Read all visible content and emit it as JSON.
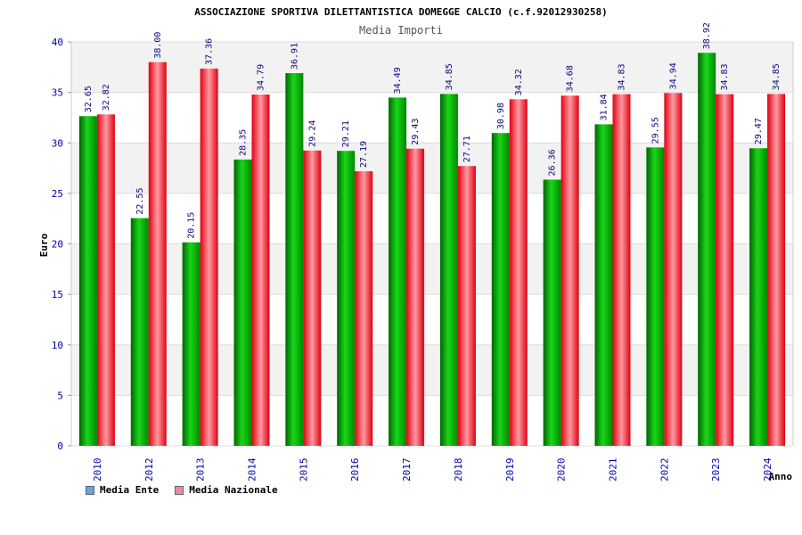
{
  "chart_data": {
    "type": "bar",
    "title": "ASSOCIAZIONE SPORTIVA DILETTANTISTICA DOMEGGE CALCIO (c.f.92012930258)",
    "subtitle": "Media Importi",
    "xlabel": "Anno",
    "ylabel": "Euro",
    "ylim": [
      0,
      40
    ],
    "yticks": [
      0,
      5,
      10,
      15,
      20,
      25,
      30,
      35,
      40
    ],
    "categories": [
      "2010",
      "2012",
      "2013",
      "2014",
      "2015",
      "2016",
      "2017",
      "2018",
      "2019",
      "2020",
      "2021",
      "2022",
      "2023",
      "2024"
    ],
    "series": [
      {
        "name": "Media Ente",
        "values": [
          32.65,
          22.55,
          20.15,
          28.35,
          36.91,
          29.21,
          34.49,
          34.85,
          30.98,
          26.36,
          31.84,
          29.55,
          38.92,
          29.47
        ]
      },
      {
        "name": "Media Nazionale",
        "values": [
          32.82,
          38.0,
          37.36,
          34.79,
          29.24,
          27.19,
          29.43,
          27.71,
          34.32,
          34.68,
          34.83,
          34.94,
          34.83,
          34.85
        ]
      }
    ],
    "data_labels": {
      "Media Ente": [
        "32.65",
        "22.55",
        "20.15",
        "28.35",
        "36.91",
        "29.21",
        "34.49",
        "34.85",
        "30.98",
        "26.36",
        "31.84",
        "29.55",
        "38.92",
        "29.47"
      ],
      "Media Nazionale": [
        "32.82",
        "38.00",
        "37.36",
        "34.79",
        "29.24",
        "27.19",
        "29.43",
        "27.71",
        "34.32",
        "34.68",
        "34.83",
        "34.94",
        "34.83",
        "34.85"
      ]
    },
    "grid": true,
    "legend_position": "bottom-left",
    "colors": {
      "ente": "#00b400",
      "nazionale": "#e8202a",
      "band": "#f2f2f2",
      "tick_text": "#0000aa"
    },
    "legend_swatch_colors": {
      "Media Ente": "#66a3e0",
      "Media Nazionale": "#e88aa8"
    }
  }
}
